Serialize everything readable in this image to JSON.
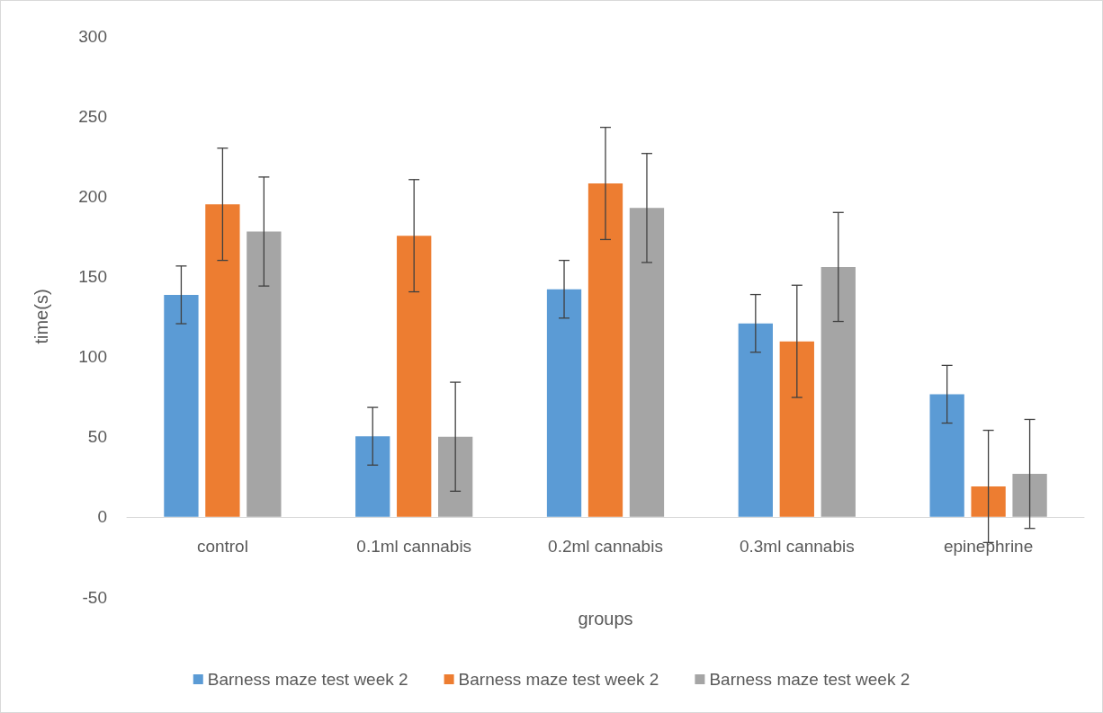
{
  "chart_data": {
    "type": "bar",
    "xlabel": "groups",
    "ylabel": "time(s)",
    "categories": [
      "control",
      "0.1ml cannabis",
      "0.2ml cannabis",
      "0.3ml cannabis",
      "epinephrine"
    ],
    "series": [
      {
        "name": "Barness maze test week 2",
        "color": "#5b9bd5",
        "values": [
          138.5,
          50.3,
          142,
          120.7,
          76.5
        ],
        "errors": [
          18,
          18,
          18,
          18,
          18
        ]
      },
      {
        "name": "Barness maze test week 2",
        "color": "#ed7d31",
        "values": [
          195,
          175.4,
          208,
          109.5,
          19
        ],
        "errors": [
          35,
          35,
          35,
          35,
          35
        ]
      },
      {
        "name": "Barness maze test week 2",
        "color": "#a5a5a5",
        "values": [
          178,
          50,
          192.7,
          155.9,
          26.8
        ],
        "errors": [
          34,
          34,
          34,
          34,
          34
        ]
      }
    ],
    "ylim": [
      -50,
      300
    ],
    "yticks": [
      -50,
      0,
      50,
      100,
      150,
      200,
      250,
      300
    ],
    "grid": false,
    "legend": "bottom"
  }
}
